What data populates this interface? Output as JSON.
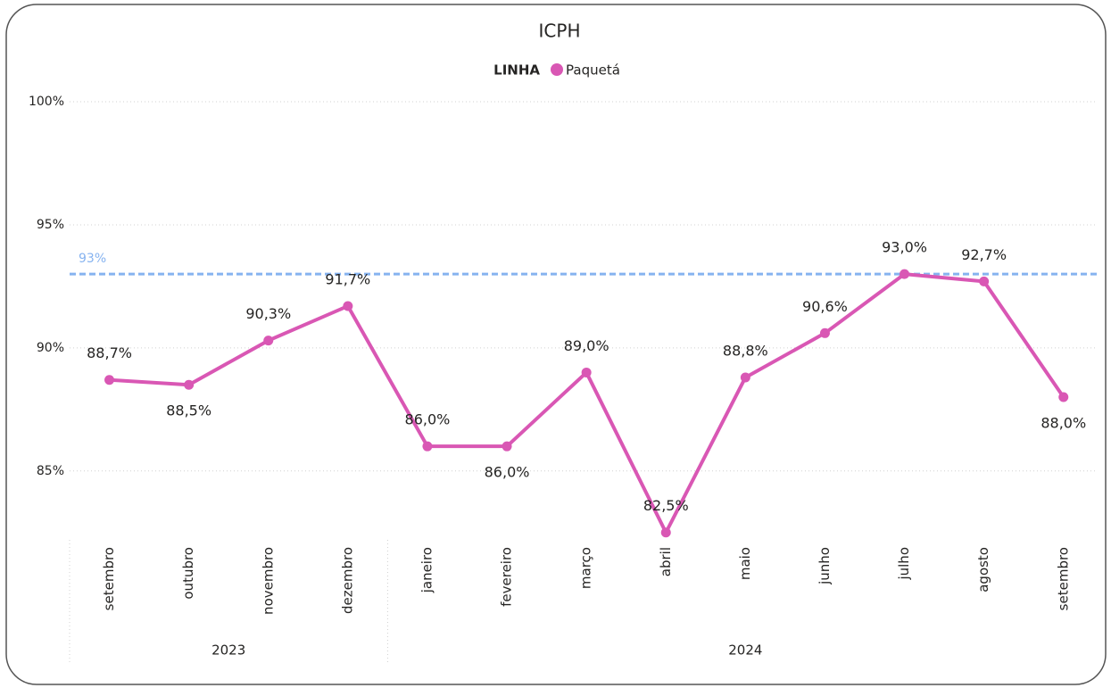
{
  "chart_data": {
    "type": "line",
    "title": "ICPH",
    "legend_title": "LINHA",
    "categories": [
      "setembro",
      "outubro",
      "novembro",
      "dezembro",
      "janeiro",
      "fevereiro",
      "março",
      "abril",
      "maio",
      "junho",
      "julho",
      "agosto",
      "setembro"
    ],
    "x_groups": [
      {
        "label": "2023",
        "span": 4
      },
      {
        "label": "2024",
        "span": 9
      }
    ],
    "series": [
      {
        "name": "Paquetá",
        "color": "#d957b4",
        "values": [
          88.7,
          88.5,
          90.3,
          91.7,
          86.0,
          86.0,
          89.0,
          82.5,
          88.8,
          90.6,
          93.0,
          92.7,
          88.0
        ],
        "value_labels": [
          "88,7%",
          "88,5%",
          "90,3%",
          "91,7%",
          "86,0%",
          "86,0%",
          "89,0%",
          "82,5%",
          "88,8%",
          "90,6%",
          "93,0%",
          "92,7%",
          "88,0%"
        ]
      }
    ],
    "reference_line": {
      "value": 93,
      "label": "93%",
      "color": "#86b3f0"
    },
    "ylim": [
      82.2,
      100.4
    ],
    "yticks": [
      {
        "value": 85,
        "label": "85%"
      },
      {
        "value": 90,
        "label": "90%"
      },
      {
        "value": 95,
        "label": "95%"
      },
      {
        "value": 100,
        "label": "100%"
      }
    ],
    "grid": true
  }
}
